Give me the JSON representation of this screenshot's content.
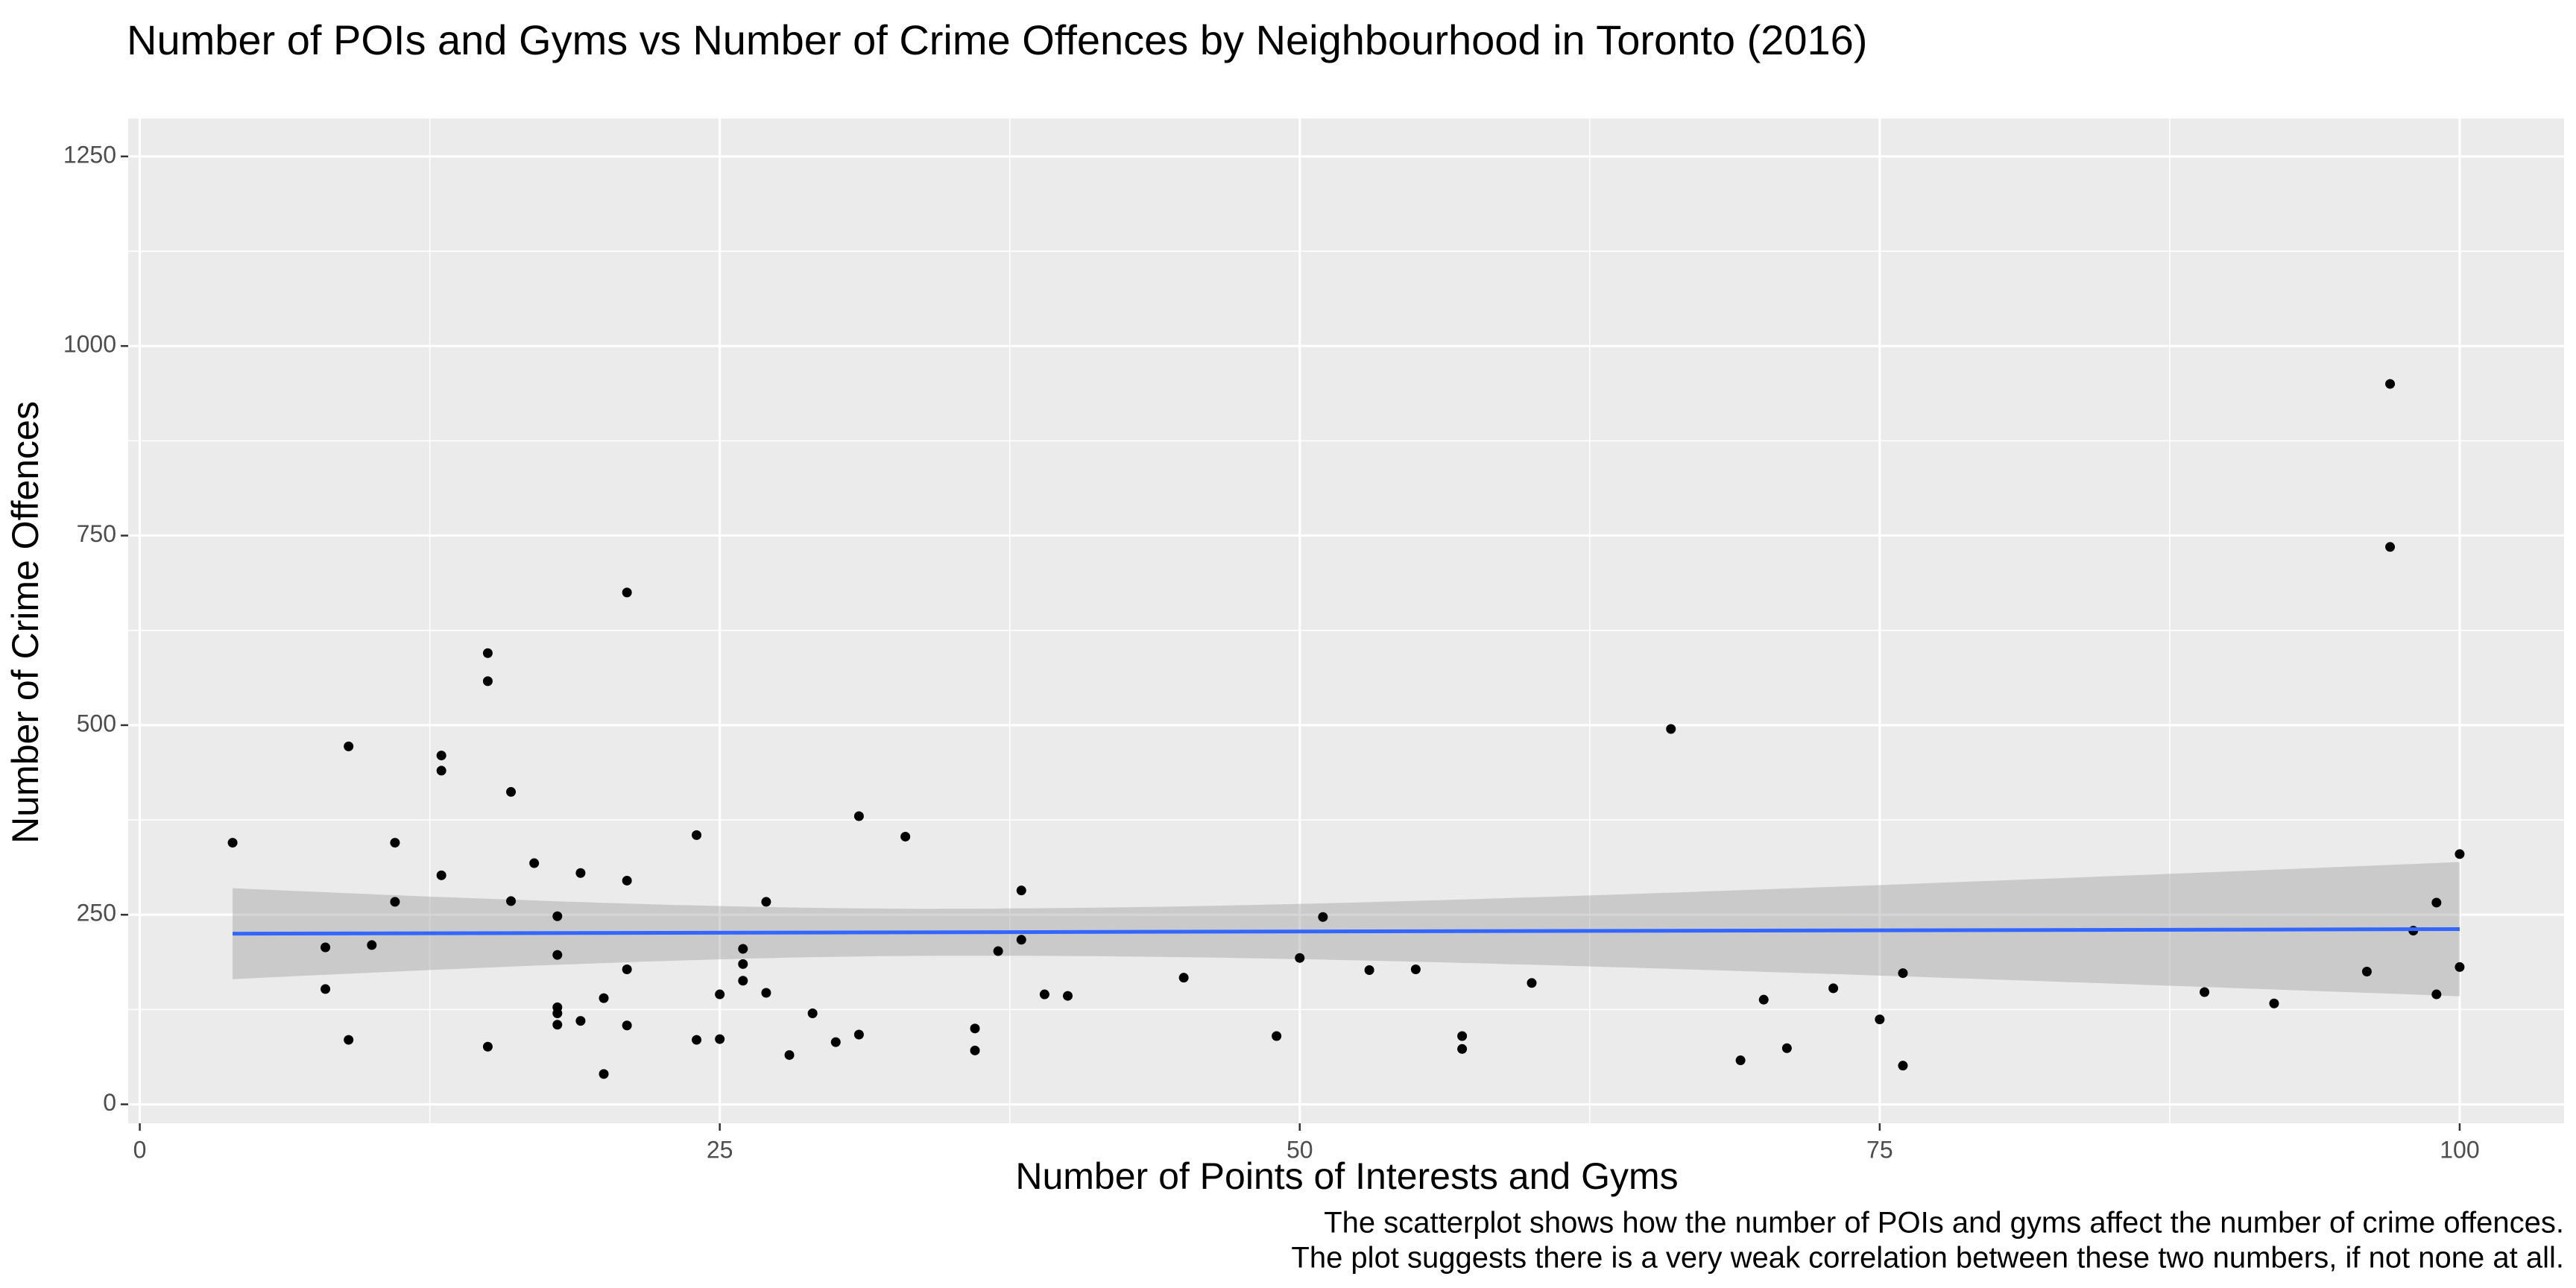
{
  "chart_data": {
    "type": "scatter",
    "title": "Number of POIs and Gyms vs Number of Crime Offences by Neighbourhood in Toronto (2016)",
    "xlabel": "Number of Points of Interests and Gyms",
    "ylabel": "Number of Crime Offences",
    "caption": [
      "The scatterplot shows how the number of POIs and gyms affect the number of crime offences.",
      "The plot suggests there is a very weak correlation between these two numbers, if not none at all."
    ],
    "xlim": [
      -0.5,
      104.5
    ],
    "ylim": [
      -25,
      1300
    ],
    "x_ticks": [
      0,
      25,
      50,
      75,
      100
    ],
    "y_ticks": [
      0,
      250,
      500,
      750,
      1000,
      1250
    ],
    "grid": true,
    "legend": "none",
    "colors": {
      "panel": "#ebebeb",
      "grid": "#ffffff",
      "point": "#000000",
      "trend": "#3366ff",
      "band": "#999999"
    },
    "trend": {
      "method": "linear",
      "x_range": [
        4,
        100
      ],
      "y_start": 225,
      "y_end": 231,
      "band_lower": [
        165,
        141
      ],
      "band_upper": [
        285,
        318
      ],
      "band_mid_x": 35,
      "band_mid_half_width": 31
    },
    "points": [
      {
        "x": 4,
        "y": 345
      },
      {
        "x": 8,
        "y": 207
      },
      {
        "x": 8,
        "y": 152
      },
      {
        "x": 9,
        "y": 472
      },
      {
        "x": 9,
        "y": 85
      },
      {
        "x": 10,
        "y": 210
      },
      {
        "x": 11,
        "y": 345
      },
      {
        "x": 11,
        "y": 267
      },
      {
        "x": 13,
        "y": 460
      },
      {
        "x": 13,
        "y": 440
      },
      {
        "x": 13,
        "y": 302
      },
      {
        "x": 15,
        "y": 595
      },
      {
        "x": 15,
        "y": 558
      },
      {
        "x": 15,
        "y": 76
      },
      {
        "x": 16,
        "y": 412
      },
      {
        "x": 16,
        "y": 268
      },
      {
        "x": 17,
        "y": 318
      },
      {
        "x": 18,
        "y": 248
      },
      {
        "x": 18,
        "y": 197
      },
      {
        "x": 18,
        "y": 128
      },
      {
        "x": 18,
        "y": 120
      },
      {
        "x": 18,
        "y": 105
      },
      {
        "x": 19,
        "y": 305
      },
      {
        "x": 19,
        "y": 110
      },
      {
        "x": 20,
        "y": 140
      },
      {
        "x": 20,
        "y": 40
      },
      {
        "x": 21,
        "y": 675
      },
      {
        "x": 21,
        "y": 295
      },
      {
        "x": 21,
        "y": 178
      },
      {
        "x": 21,
        "y": 104
      },
      {
        "x": 24,
        "y": 355
      },
      {
        "x": 24,
        "y": 85
      },
      {
        "x": 25,
        "y": 145
      },
      {
        "x": 25,
        "y": 86
      },
      {
        "x": 26,
        "y": 205
      },
      {
        "x": 26,
        "y": 185
      },
      {
        "x": 26,
        "y": 163
      },
      {
        "x": 27,
        "y": 267
      },
      {
        "x": 27,
        "y": 147
      },
      {
        "x": 28,
        "y": 65
      },
      {
        "x": 29,
        "y": 120
      },
      {
        "x": 30,
        "y": 82
      },
      {
        "x": 31,
        "y": 380
      },
      {
        "x": 31,
        "y": 92
      },
      {
        "x": 33,
        "y": 353
      },
      {
        "x": 36,
        "y": 100
      },
      {
        "x": 36,
        "y": 71
      },
      {
        "x": 37,
        "y": 202
      },
      {
        "x": 38,
        "y": 282
      },
      {
        "x": 38,
        "y": 217
      },
      {
        "x": 39,
        "y": 145
      },
      {
        "x": 40,
        "y": 143
      },
      {
        "x": 45,
        "y": 167
      },
      {
        "x": 49,
        "y": 90
      },
      {
        "x": 50,
        "y": 193
      },
      {
        "x": 51,
        "y": 247
      },
      {
        "x": 53,
        "y": 177
      },
      {
        "x": 55,
        "y": 178
      },
      {
        "x": 57,
        "y": 90
      },
      {
        "x": 57,
        "y": 73
      },
      {
        "x": 60,
        "y": 160
      },
      {
        "x": 66,
        "y": 495
      },
      {
        "x": 69,
        "y": 58
      },
      {
        "x": 70,
        "y": 138
      },
      {
        "x": 71,
        "y": 74
      },
      {
        "x": 73,
        "y": 153
      },
      {
        "x": 75,
        "y": 112
      },
      {
        "x": 76,
        "y": 173
      },
      {
        "x": 76,
        "y": 51
      },
      {
        "x": 89,
        "y": 148
      },
      {
        "x": 92,
        "y": 133
      },
      {
        "x": 96,
        "y": 175
      },
      {
        "x": 97,
        "y": 950
      },
      {
        "x": 97,
        "y": 735
      },
      {
        "x": 98,
        "y": 229
      },
      {
        "x": 99,
        "y": 266
      },
      {
        "x": 99,
        "y": 145
      },
      {
        "x": 100,
        "y": 330
      },
      {
        "x": 100,
        "y": 181
      }
    ]
  }
}
